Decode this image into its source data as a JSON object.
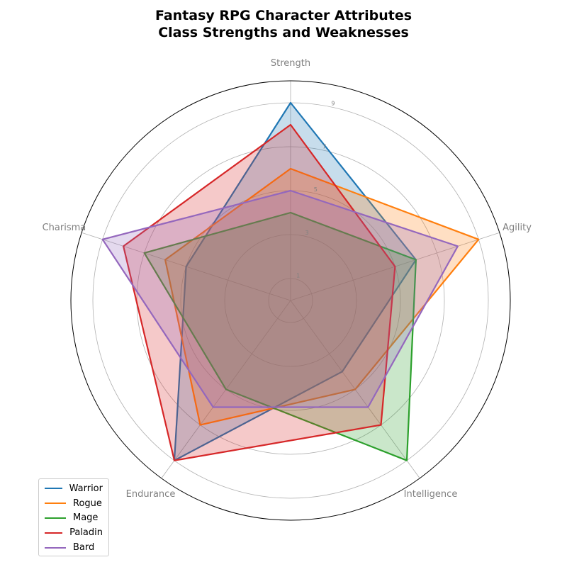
{
  "chart_data": {
    "type": "radar",
    "title_lines": [
      "Fantasy RPG Character Attributes",
      "Class Strengths and Weaknesses"
    ],
    "axes": [
      "Strength",
      "Agility",
      "Intelligence",
      "Endurance",
      "Charisma"
    ],
    "radial_ticks": [
      "1",
      "3",
      "5",
      "7",
      "9"
    ],
    "radial_range": [
      0,
      10
    ],
    "grid": true,
    "legend_position": "lower-left",
    "series": [
      {
        "name": "Warrior",
        "color": "#1f77b4",
        "values": [
          9,
          6,
          4,
          9,
          5
        ]
      },
      {
        "name": "Rogue",
        "color": "#ff7f0e",
        "values": [
          6,
          9,
          5,
          7,
          6
        ]
      },
      {
        "name": "Mage",
        "color": "#2ca02c",
        "values": [
          4,
          6,
          9,
          5,
          7
        ]
      },
      {
        "name": "Paladin",
        "color": "#d62728",
        "values": [
          8,
          5,
          7,
          9,
          8
        ]
      },
      {
        "name": "Bard",
        "color": "#9467bd",
        "values": [
          5,
          8,
          6,
          6,
          9
        ]
      }
    ]
  }
}
